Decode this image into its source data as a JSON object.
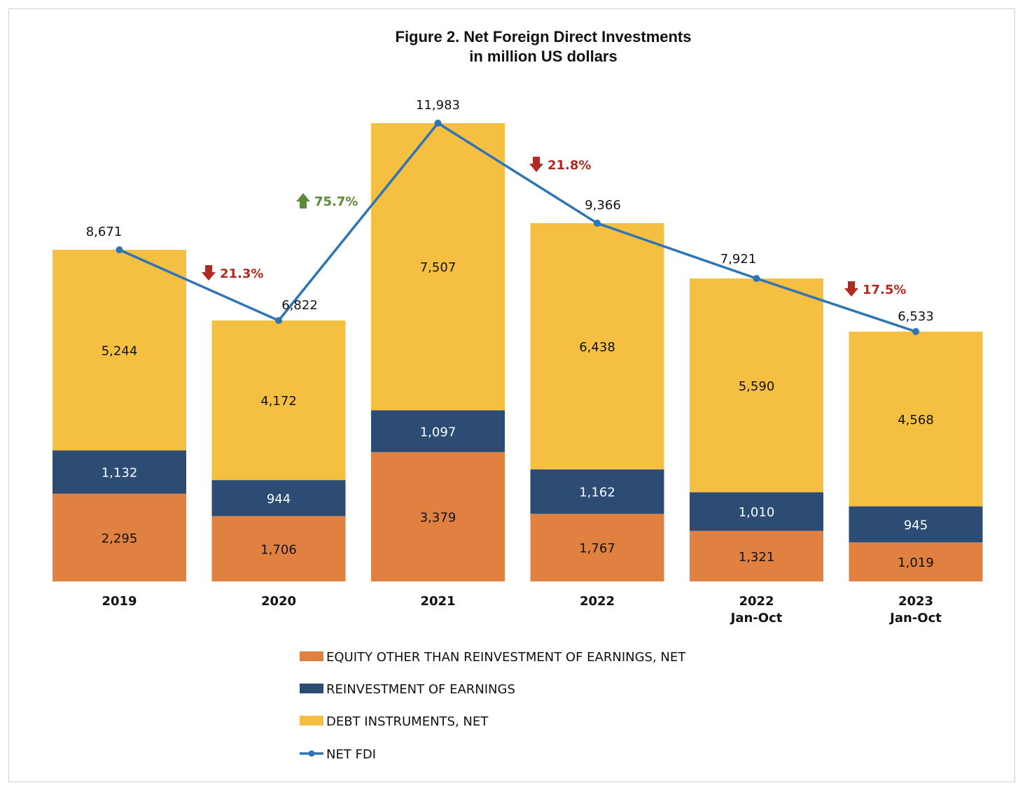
{
  "chart_data": {
    "type": "bar",
    "stacked": true,
    "title": "Figure 2. Net Foreign Direct Investments",
    "subtitle": "in million US dollars",
    "categories": [
      [
        "2019"
      ],
      [
        "2020"
      ],
      [
        "2021"
      ],
      [
        "2022"
      ],
      [
        "2022",
        "Jan-Oct"
      ],
      [
        "2023",
        "Jan-Oct"
      ]
    ],
    "series": [
      {
        "name": "EQUITY OTHER THAN REINVESTMENT OF EARNINGS, NET",
        "color": "#e08142",
        "label_color": "#111111",
        "values": [
          2295,
          1706,
          3379,
          1767,
          1321,
          1019
        ],
        "labels": [
          "2,295",
          "1,706",
          "3,379",
          "1,767",
          "1,321",
          "1,019"
        ]
      },
      {
        "name": "REINVESTMENT OF EARNINGS",
        "color": "#2c4c74",
        "label_color": "#ffffff",
        "values": [
          1132,
          944,
          1097,
          1162,
          1010,
          945
        ],
        "labels": [
          "1,132",
          "944",
          "1,097",
          "1,162",
          "1,010",
          "945"
        ]
      },
      {
        "name": "DEBT INSTRUMENTS, NET",
        "color": "#f5bf42",
        "label_color": "#111111",
        "values": [
          5244,
          4172,
          7507,
          6438,
          5590,
          4568
        ],
        "labels": [
          "5,244",
          "4,172",
          "7,507",
          "6,438",
          "5,590",
          "4,568"
        ]
      }
    ],
    "line": {
      "name": "NET FDI",
      "color": "#2e75b6",
      "values": [
        8671,
        6822,
        11983,
        9366,
        7921,
        6533
      ],
      "labels": [
        "8,671",
        "6,822",
        "11,983",
        "9,366",
        "7,921",
        "6,533"
      ]
    },
    "changes": [
      {
        "between": [
          0,
          1
        ],
        "direction": "down",
        "text": "21.3%",
        "color": "#b02a20"
      },
      {
        "between": [
          1,
          2
        ],
        "direction": "up",
        "text": "75.7%",
        "color": "#5a8a3a"
      },
      {
        "between": [
          2,
          3
        ],
        "direction": "down",
        "text": "21.8%",
        "color": "#b02a20"
      },
      {
        "between": [
          4,
          5
        ],
        "direction": "down",
        "text": "17.5%",
        "color": "#b02a20"
      }
    ],
    "ylim": [
      0,
      12000
    ],
    "grid": false,
    "legend_position": "bottom"
  }
}
